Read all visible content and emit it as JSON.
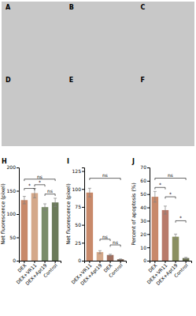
{
  "annotations": [
    "A",
    "B",
    "C",
    "D",
    "E",
    "F"
  ],
  "chart_data": [
    {
      "type": "bar",
      "title": "H",
      "categories": [
        "DEX",
        "DEX+VR11",
        "DEX+Apt19",
        "Control"
      ],
      "values": [
        130,
        145,
        115,
        125
      ],
      "errors": [
        8,
        10,
        7,
        9
      ],
      "colors": [
        "#c8896a",
        "#d4a88a",
        "#7a8c6a",
        "#6b7a5a"
      ],
      "y_label": "Net fluorescence (pixel)",
      "ylim": [
        0,
        200
      ],
      "yticks": [
        0,
        50,
        100,
        150,
        200
      ],
      "annotations": [
        {
          "text": "ns",
          "x": [
            0,
            3
          ],
          "y": 175
        },
        {
          "text": "*",
          "x": [
            0,
            1
          ],
          "y": 155
        },
        {
          "text": "*",
          "x": [
            1,
            2
          ],
          "y": 163
        },
        {
          "text": "ns",
          "x": [
            2,
            3
          ],
          "y": 143
        }
      ]
    },
    {
      "type": "bar",
      "title": "I",
      "categories": [
        "DEX+VR11",
        "DEX+Apt19",
        "DEX",
        "Control"
      ],
      "values": [
        95,
        12,
        8,
        2
      ],
      "errors": [
        6,
        2,
        1,
        0.5
      ],
      "colors": [
        "#c8896a",
        "#d4a88a",
        "#a07060",
        "#7a6050"
      ],
      "y_label": "Net fluorescence (pixel)",
      "ylim": [
        0,
        130
      ],
      "yticks": [
        0,
        25,
        50,
        75,
        100,
        125
      ],
      "annotations": [
        {
          "text": "ns",
          "x": [
            0,
            3
          ],
          "y": 115
        },
        {
          "text": "ns",
          "x": [
            1,
            2
          ],
          "y": 30
        },
        {
          "text": "ns",
          "x": [
            2,
            3
          ],
          "y": 22
        }
      ]
    },
    {
      "type": "bar",
      "title": "J",
      "categories": [
        "DEX",
        "DEX+VR11",
        "DEX+Apt19",
        "Control"
      ],
      "values": [
        48,
        38,
        18,
        2
      ],
      "errors": [
        4,
        3,
        2,
        0.5
      ],
      "colors": [
        "#c8896a",
        "#b87a6a",
        "#8a9060",
        "#6a7050"
      ],
      "y_label": "Percent of apoptosis (%)",
      "ylim": [
        0,
        70
      ],
      "yticks": [
        0,
        10,
        20,
        30,
        40,
        50,
        60,
        70
      ],
      "annotations": [
        {
          "text": "ns",
          "x": [
            0,
            3
          ],
          "y": 62
        },
        {
          "text": "*",
          "x": [
            0,
            1
          ],
          "y": 55
        },
        {
          "text": "*",
          "x": [
            1,
            2
          ],
          "y": 48
        },
        {
          "text": "*",
          "x": [
            2,
            3
          ],
          "y": 30
        }
      ]
    }
  ]
}
